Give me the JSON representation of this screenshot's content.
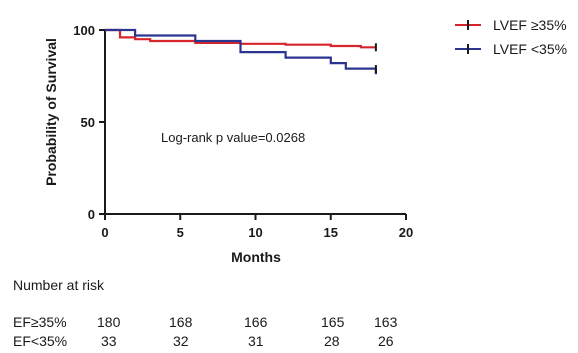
{
  "chart_data": {
    "type": "line",
    "subtype": "kaplan-meier",
    "xlabel": "Months",
    "ylabel": "Probability of Survival",
    "xlim": [
      0,
      20
    ],
    "ylim": [
      0,
      100
    ],
    "xticks": [
      "0",
      "5",
      "10",
      "15",
      "20"
    ],
    "yticks": [
      "0",
      "50",
      "100"
    ],
    "grid": false,
    "legend_position": "top-right",
    "annotation": "Log-rank p value=0.0268",
    "series": [
      {
        "name": "LVEF ≥35%",
        "color": "#d7262b",
        "x": [
          0,
          1,
          1,
          2,
          2,
          3,
          3,
          6,
          6,
          9,
          9,
          12,
          12,
          15,
          15,
          17,
          17,
          18
        ],
        "y": [
          100,
          100,
          96,
          96,
          95,
          95,
          94,
          94,
          93,
          93,
          92.5,
          92.5,
          92,
          92,
          91.3,
          91.3,
          90.6,
          90.6
        ],
        "censor_x": [
          18
        ],
        "censor_y": [
          90.6
        ]
      },
      {
        "name": "LVEF <35%",
        "color": "#2b3590",
        "x": [
          0,
          2,
          2,
          6,
          6,
          9,
          9,
          12,
          12,
          15,
          15,
          16,
          16,
          18,
          18
        ],
        "y": [
          100,
          100,
          97,
          97,
          94,
          94,
          88,
          88,
          85,
          85,
          82,
          82,
          79,
          79,
          76
        ],
        "censor_x": [
          18
        ],
        "censor_y": [
          78.8
        ]
      }
    ],
    "number_at_risk": {
      "title": "Number at risk",
      "rows": [
        {
          "label": "EF≥35%",
          "values": [
            "180",
            "168",
            "166",
            "165",
            "163"
          ]
        },
        {
          "label": "EF<35%",
          "values": [
            "33",
            "32",
            "31",
            "28",
            "26"
          ]
        }
      ]
    }
  }
}
